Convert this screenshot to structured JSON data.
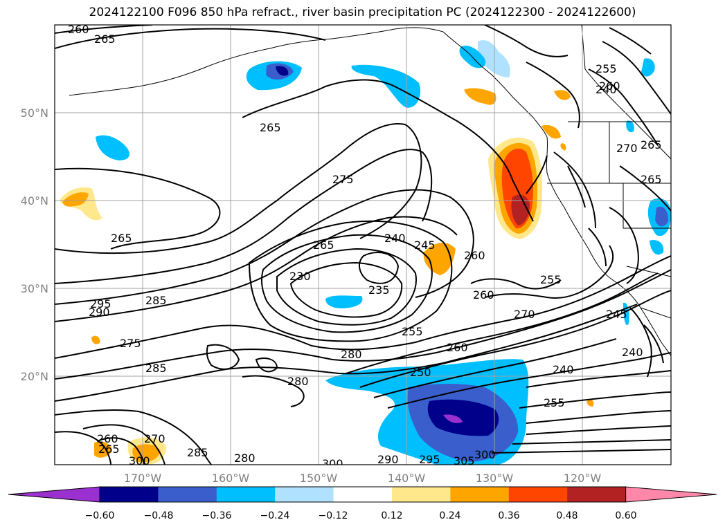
{
  "title": "2024122100 F096 850 hPa refract., river basin precipitation PC (2024122300 - 2024122600)",
  "lat_labels": [
    "50°N",
    "40°N",
    "30°N",
    "20°N"
  ],
  "lon_labels": [
    "170°W",
    "160°W",
    "150°W",
    "140°W",
    "130°W",
    "120°W"
  ],
  "contour_labels": [
    "260",
    "265",
    "265",
    "275",
    "265",
    "245",
    "240",
    "265",
    "235",
    "230",
    "295",
    "290",
    "285",
    "275",
    "285",
    "280",
    "250",
    "255",
    "260",
    "260",
    "260",
    "255",
    "270",
    "240",
    "255",
    "240",
    "245",
    "240",
    "265",
    "265",
    "270",
    "255",
    "260",
    "280",
    "285",
    "280",
    "270",
    "300",
    "300",
    "290",
    "295",
    "305",
    "300",
    "265",
    "260"
  ],
  "colorbar": {
    "ticks": [
      "−0.60",
      "−0.48",
      "−0.36",
      "−0.24",
      "−0.12",
      "0.12",
      "0.24",
      "0.36",
      "0.48",
      "0.60"
    ],
    "colors": [
      "#9b30d0",
      "#00008b",
      "#3a5fcd",
      "#00bfff",
      "#b0e2ff",
      "#ffffff",
      "#ffe88c",
      "#ffa500",
      "#ff4500",
      "#b22222",
      "#ff88aa"
    ]
  }
}
